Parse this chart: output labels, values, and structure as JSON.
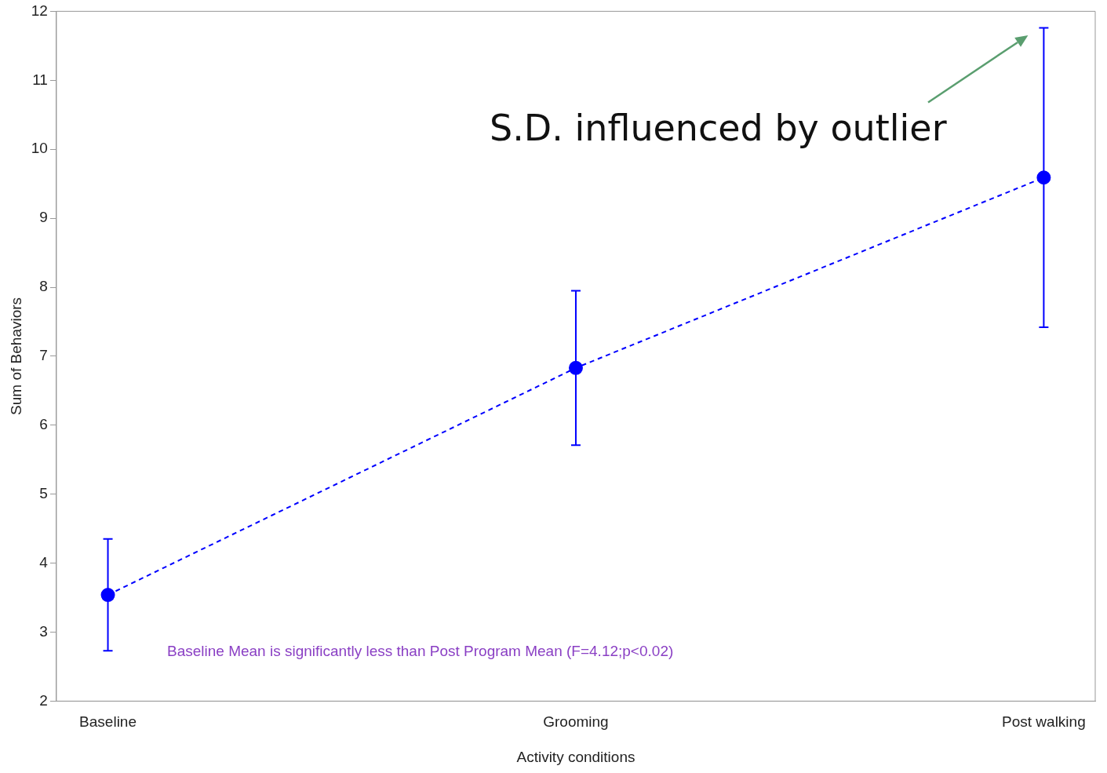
{
  "chart_data": {
    "type": "line",
    "xlabel": "Activity conditions",
    "ylabel": "Sum of Behaviors",
    "categories": [
      "Baseline",
      "Grooming",
      "Post walking"
    ],
    "series": [
      {
        "color": "#0000ff",
        "values": [
          3.54,
          6.83,
          9.59
        ],
        "errors": [
          0.81,
          1.12,
          2.17
        ]
      }
    ],
    "ylim": [
      2,
      12
    ],
    "yticks": [
      2,
      3,
      4,
      5,
      6,
      7,
      8,
      9,
      10,
      11,
      12
    ],
    "marker": "circle",
    "line_style": "dashed",
    "grid": false,
    "legend": false,
    "annotations": [
      "S.D. influenced by outlier",
      "Baseline Mean is significantly less than Post Program Mean (F=4.12;p<0.02)"
    ]
  }
}
